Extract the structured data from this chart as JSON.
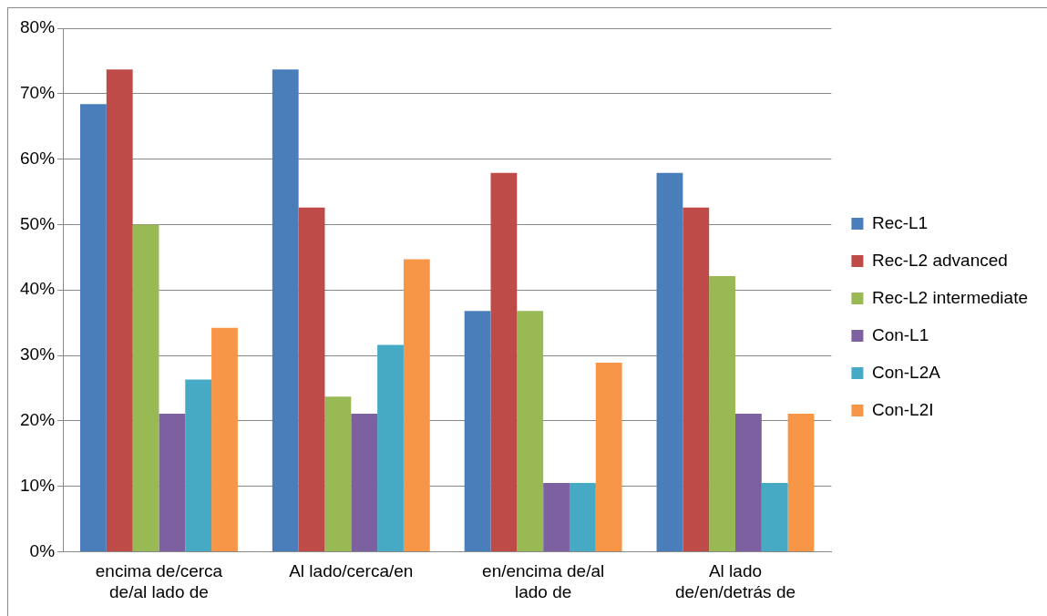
{
  "chart_data": {
    "type": "bar",
    "categories": [
      "encima de/cerca de/al lado de",
      "Al lado/cerca/en",
      "en/encima de/al lado de",
      "Al lado de/en/detrás de"
    ],
    "series": [
      {
        "name": "Rec-L1",
        "color": "#4a7ebb",
        "values": [
          68.4,
          73.7,
          36.8,
          57.9
        ]
      },
      {
        "name": "Rec-L2 advanced",
        "color": "#be4b48",
        "values": [
          73.7,
          52.6,
          57.9,
          52.6
        ]
      },
      {
        "name": "Rec-L2 intermediate",
        "color": "#98b954",
        "values": [
          50,
          23.7,
          36.8,
          42.1
        ]
      },
      {
        "name": "Con-L1",
        "color": "#7d60a0",
        "values": [
          21.1,
          21.1,
          10.5,
          21.1
        ]
      },
      {
        "name": "Con-L2A",
        "color": "#46aac5",
        "values": [
          26.3,
          31.6,
          10.5,
          10.5
        ]
      },
      {
        "name": "Con-L2I",
        "color": "#f79646",
        "values": [
          34.2,
          44.7,
          28.9,
          21.1
        ]
      }
    ],
    "ylim": [
      0,
      80
    ],
    "yticks": [
      {
        "value": 0,
        "label": "0%"
      },
      {
        "value": 10,
        "label": "10%"
      },
      {
        "value": 20,
        "label": "20%"
      },
      {
        "value": 30,
        "label": "30%"
      },
      {
        "value": 40,
        "label": "40%"
      },
      {
        "value": 50,
        "label": "50%"
      },
      {
        "value": 60,
        "label": "60%"
      },
      {
        "value": 70,
        "label": "70%"
      },
      {
        "value": 80,
        "label": "80%"
      }
    ],
    "grid": "y",
    "legend": "right"
  }
}
